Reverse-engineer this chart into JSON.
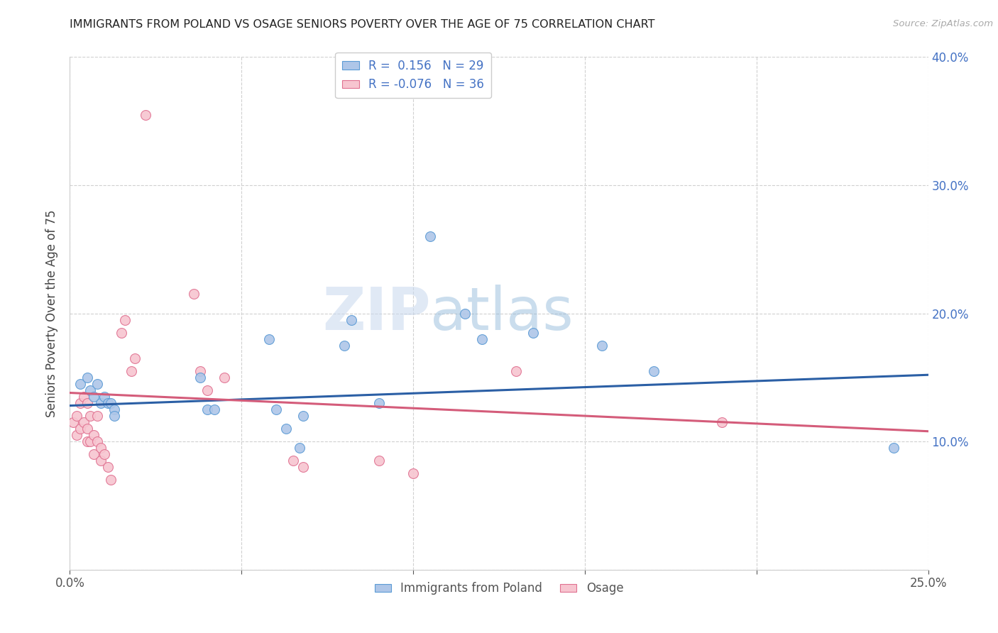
{
  "title": "IMMIGRANTS FROM POLAND VS OSAGE SENIORS POVERTY OVER THE AGE OF 75 CORRELATION CHART",
  "source": "Source: ZipAtlas.com",
  "ylabel": "Seniors Poverty Over the Age of 75",
  "xlim": [
    0.0,
    0.25
  ],
  "ylim": [
    0.0,
    0.4
  ],
  "x_ticks": [
    0.0,
    0.05,
    0.1,
    0.15,
    0.2,
    0.25
  ],
  "y_ticks": [
    0.0,
    0.1,
    0.2,
    0.3,
    0.4
  ],
  "legend_labels": [
    "Immigrants from Poland",
    "Osage"
  ],
  "R_poland": 0.156,
  "N_poland": 29,
  "R_osage": -0.076,
  "N_osage": 36,
  "blue_fill": "#aec6e8",
  "pink_fill": "#f7c5d0",
  "blue_edge": "#5b9bd5",
  "pink_edge": "#e07090",
  "blue_line_color": "#2b5fa5",
  "pink_line_color": "#d45c7a",
  "blue_scatter": [
    [
      0.003,
      0.145
    ],
    [
      0.005,
      0.15
    ],
    [
      0.006,
      0.14
    ],
    [
      0.007,
      0.135
    ],
    [
      0.008,
      0.145
    ],
    [
      0.009,
      0.13
    ],
    [
      0.01,
      0.135
    ],
    [
      0.011,
      0.13
    ],
    [
      0.012,
      0.13
    ],
    [
      0.013,
      0.125
    ],
    [
      0.013,
      0.12
    ],
    [
      0.038,
      0.15
    ],
    [
      0.04,
      0.125
    ],
    [
      0.042,
      0.125
    ],
    [
      0.058,
      0.18
    ],
    [
      0.06,
      0.125
    ],
    [
      0.063,
      0.11
    ],
    [
      0.067,
      0.095
    ],
    [
      0.068,
      0.12
    ],
    [
      0.08,
      0.175
    ],
    [
      0.082,
      0.195
    ],
    [
      0.09,
      0.13
    ],
    [
      0.105,
      0.26
    ],
    [
      0.115,
      0.2
    ],
    [
      0.12,
      0.18
    ],
    [
      0.135,
      0.185
    ],
    [
      0.155,
      0.175
    ],
    [
      0.17,
      0.155
    ],
    [
      0.24,
      0.095
    ]
  ],
  "pink_scatter": [
    [
      0.001,
      0.115
    ],
    [
      0.002,
      0.12
    ],
    [
      0.002,
      0.105
    ],
    [
      0.003,
      0.13
    ],
    [
      0.003,
      0.11
    ],
    [
      0.004,
      0.135
    ],
    [
      0.004,
      0.115
    ],
    [
      0.005,
      0.13
    ],
    [
      0.005,
      0.11
    ],
    [
      0.005,
      0.1
    ],
    [
      0.006,
      0.12
    ],
    [
      0.006,
      0.1
    ],
    [
      0.007,
      0.105
    ],
    [
      0.007,
      0.09
    ],
    [
      0.008,
      0.12
    ],
    [
      0.008,
      0.1
    ],
    [
      0.009,
      0.095
    ],
    [
      0.009,
      0.085
    ],
    [
      0.01,
      0.09
    ],
    [
      0.011,
      0.08
    ],
    [
      0.012,
      0.07
    ],
    [
      0.015,
      0.185
    ],
    [
      0.016,
      0.195
    ],
    [
      0.018,
      0.155
    ],
    [
      0.019,
      0.165
    ],
    [
      0.022,
      0.355
    ],
    [
      0.036,
      0.215
    ],
    [
      0.038,
      0.155
    ],
    [
      0.04,
      0.14
    ],
    [
      0.045,
      0.15
    ],
    [
      0.065,
      0.085
    ],
    [
      0.068,
      0.08
    ],
    [
      0.09,
      0.085
    ],
    [
      0.1,
      0.075
    ],
    [
      0.13,
      0.155
    ],
    [
      0.19,
      0.115
    ]
  ],
  "blue_trendline": [
    0.0,
    0.25,
    0.128,
    0.152
  ],
  "pink_trendline": [
    0.0,
    0.25,
    0.138,
    0.108
  ],
  "watermark_zip": "ZIP",
  "watermark_atlas": "atlas",
  "background_color": "#ffffff",
  "grid_color": "#d0d0d0",
  "title_color": "#222222",
  "axis_label_color": "#444444",
  "right_axis_color": "#4472c4",
  "legend_R_color": "#4472c4",
  "marker_size": 100
}
